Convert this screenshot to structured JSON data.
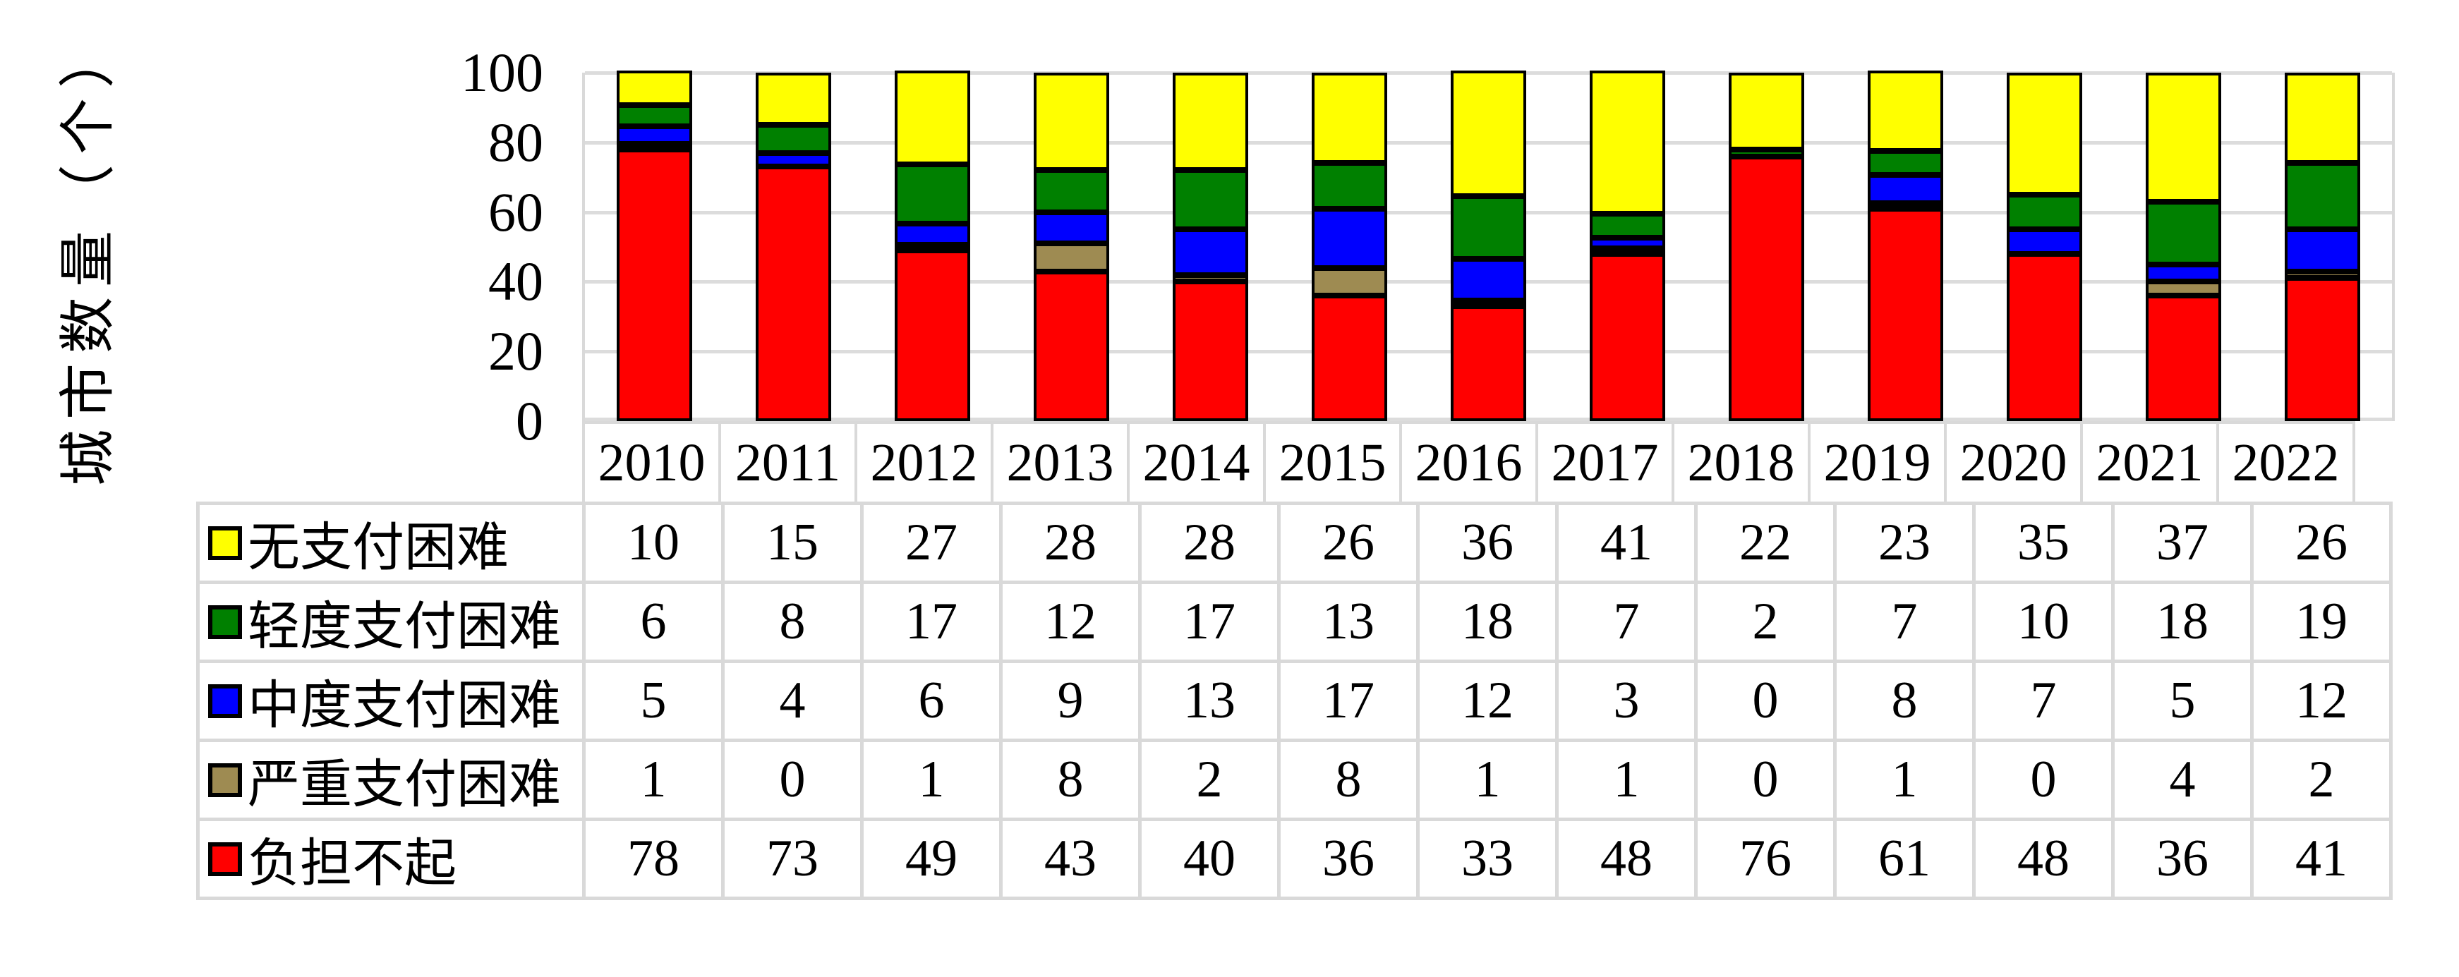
{
  "y_axis": {
    "title": "城市数量（个）",
    "ticks": [
      100,
      80,
      60,
      40,
      20,
      0
    ]
  },
  "chart_data": {
    "type": "bar",
    "stacked": true,
    "categories": [
      "2010",
      "2011",
      "2012",
      "2013",
      "2014",
      "2015",
      "2016",
      "2017",
      "2018",
      "2019",
      "2020",
      "2021",
      "2022"
    ],
    "series": [
      {
        "name": "无支付困难",
        "color": "#FFFF00",
        "values": [
          10,
          15,
          27,
          28,
          28,
          26,
          36,
          41,
          22,
          23,
          35,
          37,
          26
        ]
      },
      {
        "name": "轻度支付困难",
        "color": "#008000",
        "values": [
          6,
          8,
          17,
          12,
          17,
          13,
          18,
          7,
          2,
          7,
          10,
          18,
          19
        ]
      },
      {
        "name": "中度支付困难",
        "color": "#0000FF",
        "values": [
          5,
          4,
          6,
          9,
          13,
          17,
          12,
          3,
          0,
          8,
          7,
          5,
          12
        ]
      },
      {
        "name": "严重支付困难",
        "color": "#9E8B52",
        "values": [
          1,
          0,
          1,
          8,
          2,
          8,
          1,
          1,
          0,
          1,
          0,
          4,
          2
        ]
      },
      {
        "name": "负担不起",
        "color": "#FF0000",
        "values": [
          78,
          73,
          49,
          43,
          40,
          36,
          33,
          48,
          76,
          61,
          48,
          36,
          41
        ]
      }
    ],
    "ylabel": "城市数量（个）",
    "xlabel": "",
    "ylim": [
      0,
      100
    ],
    "grid": true,
    "gridline_color": "#DCDCDC",
    "segment_border_color": "#000000",
    "table_border_color": "#D9D9D9",
    "stack_order_bottom_to_top": [
      "负担不起",
      "严重支付困难",
      "中度支付困难",
      "轻度支付困难",
      "无支付困难"
    ],
    "legend_position": "table-left"
  }
}
